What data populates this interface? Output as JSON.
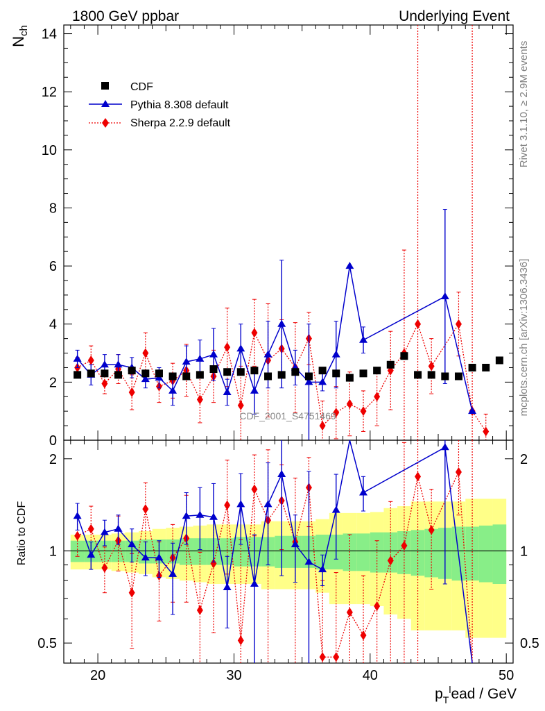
{
  "header": {
    "left": "1800 GeV ppbar",
    "right": "Underlying Event"
  },
  "side_labels": {
    "rivet": "Rivet 3.1.10, ≥ 2.9M events",
    "mcplots": "mcplots.cern.ch [arXiv:1306.3436]"
  },
  "watermark": "CDF_2001_S4751469",
  "chart_data": [
    {
      "type": "scatter",
      "panel": "main",
      "ylabel": "N_ch",
      "ylim": [
        0,
        14.3
      ],
      "xlim": [
        17.5,
        50.5
      ],
      "yticks": [
        0,
        2,
        4,
        6,
        8,
        10,
        12,
        14
      ],
      "legend_placement": "top-left",
      "series": [
        {
          "name": "CDF",
          "color": "#000000",
          "marker": "square",
          "x": [
            18.5,
            19.5,
            20.5,
            21.5,
            22.5,
            23.5,
            24.5,
            25.5,
            26.5,
            27.5,
            28.5,
            29.5,
            30.5,
            31.5,
            32.5,
            33.5,
            34.5,
            35.5,
            36.5,
            37.5,
            38.5,
            39.5,
            40.5,
            41.5,
            42.5,
            43.5,
            44.5,
            45.5,
            46.5,
            47.5,
            48.5,
            49.5
          ],
          "y": [
            2.25,
            2.3,
            2.3,
            2.25,
            2.4,
            2.3,
            2.3,
            2.2,
            2.2,
            2.25,
            2.45,
            2.35,
            2.35,
            2.4,
            2.2,
            2.25,
            2.35,
            2.2,
            2.4,
            2.3,
            2.15,
            2.3,
            2.4,
            2.6,
            2.9,
            2.25,
            2.25,
            2.2,
            2.2,
            2.5,
            2.5,
            2.75
          ]
        },
        {
          "name": "Pythia 8.308 default",
          "color": "#0000cc",
          "marker": "triangle",
          "line": "solid",
          "x": [
            18.5,
            19.5,
            20.5,
            21.5,
            22.5,
            23.5,
            24.5,
            25.5,
            26.5,
            27.5,
            28.5,
            29.5,
            30.5,
            31.5,
            32.5,
            33.5,
            34.5,
            35.5,
            36.5,
            37.5,
            38.5,
            39.5,
            45.5,
            47.5
          ],
          "y": [
            2.8,
            2.25,
            2.6,
            2.6,
            2.5,
            2.1,
            2.15,
            1.7,
            2.7,
            2.8,
            2.95,
            1.65,
            3.15,
            1.7,
            2.95,
            4.0,
            2.5,
            2.0,
            2.0,
            2.95,
            6.0,
            3.45,
            4.95,
            1.0
          ],
          "err": [
            0.3,
            0.35,
            0.35,
            0.35,
            0.35,
            0.3,
            0.35,
            0.5,
            0.55,
            0.65,
            0.9,
            0.45,
            0.85,
            0.8,
            1.15,
            2.2,
            0.6,
            2.0,
            0.3,
            1.15,
            0,
            0.45,
            3.0,
            0
          ]
        },
        {
          "name": "Sherpa 2.2.9 default",
          "color": "#ee0000",
          "marker": "diamond",
          "line": "dotted",
          "x": [
            18.5,
            19.5,
            20.5,
            21.5,
            22.5,
            23.5,
            24.5,
            25.5,
            26.5,
            27.5,
            28.5,
            29.5,
            30.5,
            31.5,
            32.5,
            33.5,
            34.5,
            35.5,
            36.5,
            37.5,
            38.5,
            39.5,
            40.5,
            41.5,
            42.5,
            43.5,
            44.5,
            46.5,
            47.5,
            48.5
          ],
          "y": [
            2.5,
            2.75,
            1.95,
            2.45,
            1.65,
            3.0,
            1.85,
            2.05,
            2.4,
            1.4,
            2.2,
            3.2,
            1.2,
            3.7,
            2.75,
            3.15,
            2.5,
            3.5,
            0.5,
            0.95,
            1.25,
            1.0,
            1.5,
            2.4,
            3.0,
            4.0,
            2.55,
            4.0,
            1.0,
            0.3
          ],
          "err": [
            0.35,
            0.5,
            0.35,
            0.5,
            0.6,
            0.7,
            0.55,
            0.6,
            0.9,
            0.8,
            0.9,
            1.35,
            1.35,
            1.15,
            1.95,
            1.0,
            1.55,
            0.9,
            0.85,
            0.9,
            1.1,
            0.7,
            1.0,
            1.35,
            3.55,
            14,
            0.95,
            1.1,
            14,
            0.6
          ]
        }
      ]
    },
    {
      "type": "scatter",
      "panel": "ratio",
      "xlabel": "p_T^lead / GeV",
      "ylabel": "Ratio to CDF",
      "scale": "log",
      "ylim": [
        0.43,
        2.3
      ],
      "xlim": [
        17.5,
        50.5
      ],
      "yticks": [
        0.5,
        1,
        2
      ],
      "xticks": [
        20,
        30,
        40,
        50
      ],
      "series": [
        {
          "name": "Pythia 8.308 default",
          "color": "#0000cc",
          "x": [
            18.5,
            19.5,
            20.5,
            21.5,
            22.5,
            23.5,
            24.5,
            25.5,
            26.5,
            27.5,
            28.5,
            29.5,
            30.5,
            31.5,
            32.5,
            33.5,
            34.5,
            35.5,
            36.5,
            37.5,
            38.5,
            39.5,
            45.5,
            47.5
          ],
          "y": [
            1.3,
            0.97,
            1.15,
            1.18,
            1.05,
            0.95,
            0.95,
            0.84,
            1.3,
            1.31,
            1.29,
            0.76,
            1.42,
            0.78,
            1.42,
            1.78,
            1.05,
            0.92,
            0.87,
            1.36,
            2.45,
            1.55,
            2.18,
            0.43
          ],
          "err": [
            0.13,
            0.1,
            0.11,
            0.13,
            0.13,
            0.12,
            0.13,
            0.22,
            0.25,
            0.3,
            0.37,
            0.2,
            0.37,
            0.35,
            0.52,
            0.95,
            0.26,
            0.9,
            0.1,
            0.42,
            0,
            0.2,
            1.4,
            0
          ]
        },
        {
          "name": "Sherpa 2.2.9 default",
          "color": "#ee0000",
          "x": [
            18.5,
            19.5,
            20.5,
            21.5,
            22.5,
            23.5,
            24.5,
            25.5,
            26.5,
            27.5,
            28.5,
            29.5,
            30.5,
            31.5,
            32.5,
            33.5,
            34.5,
            35.5,
            36.5,
            37.5,
            38.5,
            39.5,
            40.5,
            41.5,
            42.5,
            43.5,
            44.5,
            46.5,
            47.5
          ],
          "y": [
            1.12,
            1.18,
            0.88,
            1.08,
            0.73,
            1.37,
            0.83,
            0.95,
            1.1,
            0.64,
            0.91,
            1.41,
            0.51,
            1.59,
            1.26,
            1.46,
            1.07,
            1.61,
            0.45,
            0.45,
            0.63,
            0.53,
            0.66,
            0.93,
            1.04,
            1.75,
            1.17,
            1.81,
            0.43
          ],
          "err": [
            0.16,
            0.22,
            0.15,
            0.22,
            0.25,
            0.3,
            0.24,
            0.27,
            0.42,
            0.35,
            0.37,
            0.57,
            0.58,
            0.47,
            0.88,
            0.45,
            0.66,
            0.41,
            0.35,
            0.4,
            0.5,
            0.3,
            0.42,
            0.52,
            1.22,
            6,
            0.42,
            0.5,
            6
          ]
        }
      ],
      "uncertainty_bands": {
        "x": [
          18.5,
          19.5,
          20.5,
          21.5,
          22.5,
          23.5,
          24.5,
          25.5,
          26.5,
          27.5,
          28.5,
          29.5,
          30.5,
          31.5,
          32.5,
          33.5,
          34.5,
          35.5,
          36.5,
          37.5,
          38.5,
          39.5,
          40.5,
          41.5,
          42.5,
          43.5,
          44.5,
          45.5,
          46.5,
          47.5,
          48.5,
          49.5
        ],
        "stat_color": "#88ee88",
        "total_color": "#ffff88",
        "stat": [
          0.08,
          0.08,
          0.08,
          0.08,
          0.08,
          0.09,
          0.09,
          0.09,
          0.1,
          0.1,
          0.1,
          0.1,
          0.11,
          0.11,
          0.11,
          0.12,
          0.12,
          0.12,
          0.13,
          0.13,
          0.14,
          0.14,
          0.15,
          0.15,
          0.16,
          0.17,
          0.18,
          0.19,
          0.2,
          0.2,
          0.21,
          0.22
        ],
        "total": [
          0.13,
          0.13,
          0.13,
          0.14,
          0.15,
          0.16,
          0.18,
          0.19,
          0.2,
          0.21,
          0.22,
          0.22,
          0.22,
          0.22,
          0.25,
          0.25,
          0.25,
          0.25,
          0.27,
          0.33,
          0.33,
          0.33,
          0.34,
          0.38,
          0.4,
          0.45,
          0.45,
          0.45,
          0.45,
          0.48,
          0.48,
          0.48
        ]
      }
    }
  ]
}
